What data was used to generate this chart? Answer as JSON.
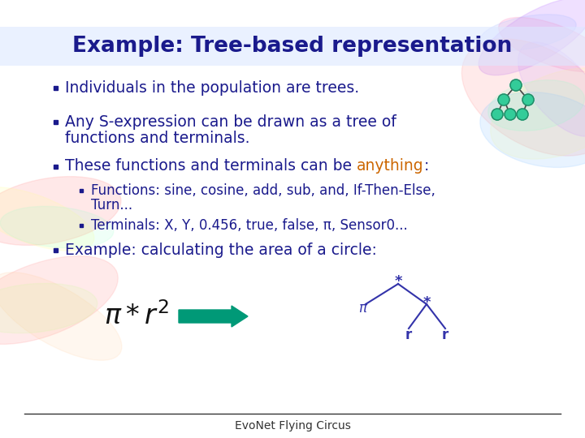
{
  "title": "Example: Tree-based representation",
  "title_color": "#1a1a8c",
  "bg_color": "#ffffff",
  "text_color": "#1a1a8c",
  "anything_color": "#cc6600",
  "footer": "EvoNet Flying Circus",
  "tree_node_color": "#33cc99",
  "tree_node_edge": "#228866",
  "tree_line_color": "#444444",
  "tree2_line_color": "#3333aa",
  "tree2_text_color": "#3333aa",
  "arrow_color": "#009977",
  "bullet1": "Individuals in the population are trees.",
  "bullet2_line1": "Any S-expression can be drawn as a tree of",
  "bullet2_line2": "functions and terminals.",
  "bullet3_prefix": "These functions and terminals can be ",
  "bullet3_anything": "anything",
  "bullet3_colon": ":",
  "sub_bullet1_line1": "Functions: sine, cosine, add, sub, and, If-Then-Else,",
  "sub_bullet1_line2": "Turn...",
  "sub_bullet2": "Terminals: X, Y, 0.456, true, false, π, Sensor0...",
  "bullet4": "Example: calculating the area of a circle:"
}
